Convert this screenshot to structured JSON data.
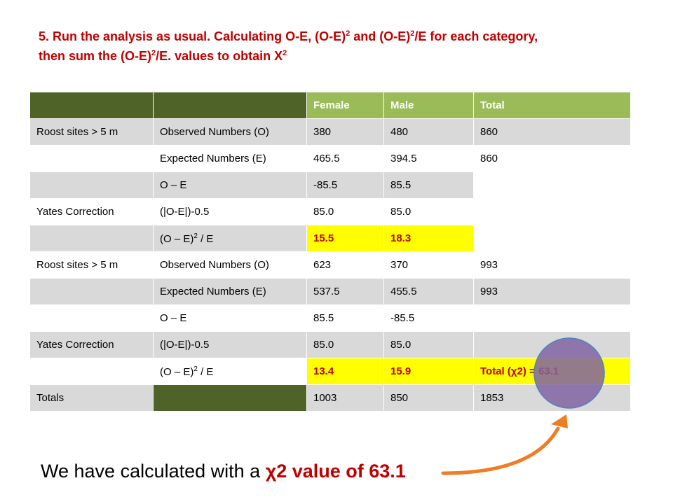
{
  "heading": {
    "line1_a": "5. Run the analysis as usual. Calculating O-E, (O-E)",
    "sup1": "2",
    "line1_b": " and (O-E)",
    "sup2": "2",
    "line1_c": "/E for each category,",
    "line2_a": "then sum the (O-E)",
    "sup3": "2",
    "line2_b": "/E. values to obtain X",
    "sup4": "2"
  },
  "table": {
    "headers": [
      "",
      "",
      "Female",
      "Male",
      "Total"
    ],
    "rows": [
      {
        "c1": "Roost sites > 5 m",
        "c2": "Observed Numbers (O)",
        "c3": "380",
        "c4": "480",
        "c5": "860"
      },
      {
        "c1": "",
        "c2": "Expected Numbers (E)",
        "c3": "465.5",
        "c4": "394.5",
        "c5": "860"
      },
      {
        "c1": "",
        "c2": "O – E",
        "c3": "-85.5",
        "c4": "85.5",
        "c5": ""
      },
      {
        "c1": "Yates Correction",
        "c2": "(|O-E|)-0.5",
        "c3": "85.0",
        "c4": "85.0",
        "c5": ""
      },
      {
        "c1": "",
        "c2a": "(O – E)",
        "c2sup": "2",
        "c2b": " / E",
        "c3": "15.5",
        "c4": "18.3",
        "c5": ""
      },
      {
        "c1": "Roost sites > 5 m",
        "c2": "Observed Numbers (O)",
        "c3": "623",
        "c4": "370",
        "c5": "993"
      },
      {
        "c1": "",
        "c2": "Expected Numbers (E)",
        "c3": "537.5",
        "c4": "455.5",
        "c5": "993"
      },
      {
        "c1": "",
        "c2": "O – E",
        "c3": "85.5",
        "c4": "-85.5",
        "c5": ""
      },
      {
        "c1": "Yates Correction",
        "c2": "(|O-E|)-0.5",
        "c3": "85.0",
        "c4": "85.0",
        "c5": ""
      },
      {
        "c1": "",
        "c2a": "(O – E)",
        "c2sup": "2",
        "c2b": " / E",
        "c3": "13.4",
        "c4": "15.9",
        "c5": "Total (χ2) = 63.1"
      },
      {
        "c1": "Totals",
        "c2": "",
        "c3": "1003",
        "c4": "850",
        "c5": "1853"
      }
    ]
  },
  "bottom": {
    "text_a": "We have calculated with a ",
    "text_b": "χ2 value of 63.1"
  },
  "colors": {
    "dark_green": "#4f6228",
    "light_green": "#9bbb59",
    "highlight": "#ffff00",
    "red": "#c00000",
    "arrow": "#f07c24",
    "circle_fill": "#8064a2",
    "circle_stroke": "#4f81bd"
  }
}
